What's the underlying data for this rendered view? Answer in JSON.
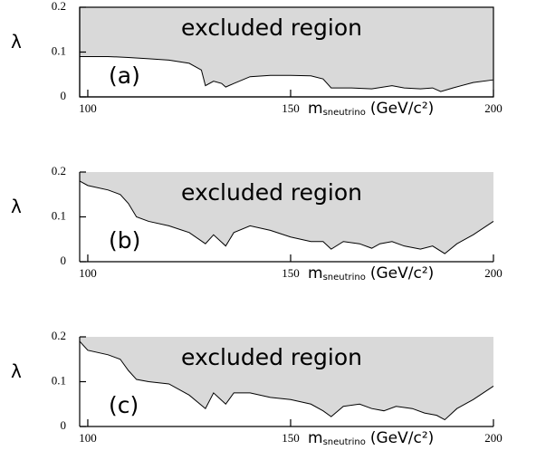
{
  "chart_data": [
    {
      "type": "area",
      "fill": "#d9d9d9",
      "frame": true,
      "annotation": "excluded region",
      "panel_label": "(a)",
      "ylabel": "λ",
      "xlabel": "m",
      "xlabel_subscript": "sneutrino",
      "xlabel_unit": "(GeV/c²)",
      "x": [
        98,
        105,
        110,
        115,
        120,
        125,
        128,
        129,
        131,
        133,
        134,
        136,
        140,
        145,
        150,
        155,
        158,
        160,
        165,
        170,
        175,
        178,
        182,
        185,
        187,
        190,
        195,
        200
      ],
      "values": [
        0.09,
        0.09,
        0.088,
        0.085,
        0.082,
        0.075,
        0.06,
        0.025,
        0.035,
        0.03,
        0.022,
        0.03,
        0.045,
        0.048,
        0.048,
        0.047,
        0.04,
        0.02,
        0.02,
        0.018,
        0.025,
        0.02,
        0.018,
        0.02,
        0.012,
        0.02,
        0.032,
        0.038
      ],
      "xlim": [
        98,
        200
      ],
      "ylim": [
        0,
        0.2
      ],
      "xticks": [
        100,
        150,
        200
      ],
      "yticks": [
        0,
        0.1,
        0.2
      ]
    },
    {
      "type": "area",
      "fill": "#d9d9d9",
      "frame": false,
      "annotation": "excluded region",
      "panel_label": "(b)",
      "ylabel": "λ",
      "xlabel": "m",
      "xlabel_subscript": "sneutrino",
      "xlabel_unit": "(GeV/c²)",
      "x": [
        98,
        100,
        105,
        108,
        110,
        112,
        115,
        120,
        125,
        129,
        131,
        134,
        136,
        140,
        145,
        150,
        155,
        158,
        160,
        163,
        167,
        170,
        172,
        175,
        178,
        182,
        185,
        188,
        191,
        195,
        200
      ],
      "values": [
        0.18,
        0.17,
        0.16,
        0.15,
        0.13,
        0.1,
        0.09,
        0.08,
        0.065,
        0.04,
        0.06,
        0.035,
        0.065,
        0.08,
        0.07,
        0.055,
        0.045,
        0.045,
        0.028,
        0.045,
        0.04,
        0.03,
        0.04,
        0.045,
        0.035,
        0.028,
        0.035,
        0.018,
        0.04,
        0.06,
        0.09
      ],
      "xlim": [
        98,
        200
      ],
      "ylim": [
        0,
        0.2
      ],
      "xticks": [
        100,
        150,
        200
      ],
      "yticks": [
        0,
        0.1,
        0.2
      ]
    },
    {
      "type": "area",
      "fill": "#d9d9d9",
      "frame": false,
      "annotation": "excluded region",
      "panel_label": "(c)",
      "ylabel": "λ",
      "xlabel": "m",
      "xlabel_subscript": "sneutrino",
      "xlabel_unit": "(GeV/c²)",
      "x": [
        98,
        100,
        105,
        108,
        110,
        112,
        115,
        120,
        125,
        129,
        131,
        134,
        136,
        140,
        145,
        150,
        155,
        158,
        160,
        163,
        167,
        170,
        173,
        176,
        180,
        183,
        186,
        188,
        191,
        195,
        200
      ],
      "values": [
        0.19,
        0.17,
        0.16,
        0.15,
        0.125,
        0.105,
        0.1,
        0.095,
        0.07,
        0.04,
        0.075,
        0.05,
        0.075,
        0.075,
        0.065,
        0.06,
        0.05,
        0.035,
        0.022,
        0.045,
        0.05,
        0.04,
        0.035,
        0.045,
        0.04,
        0.03,
        0.025,
        0.015,
        0.04,
        0.06,
        0.09
      ],
      "xlim": [
        98,
        200
      ],
      "ylim": [
        0,
        0.2
      ],
      "xticks": [
        100,
        150,
        200
      ],
      "yticks": [
        0,
        0.1,
        0.2
      ]
    }
  ]
}
